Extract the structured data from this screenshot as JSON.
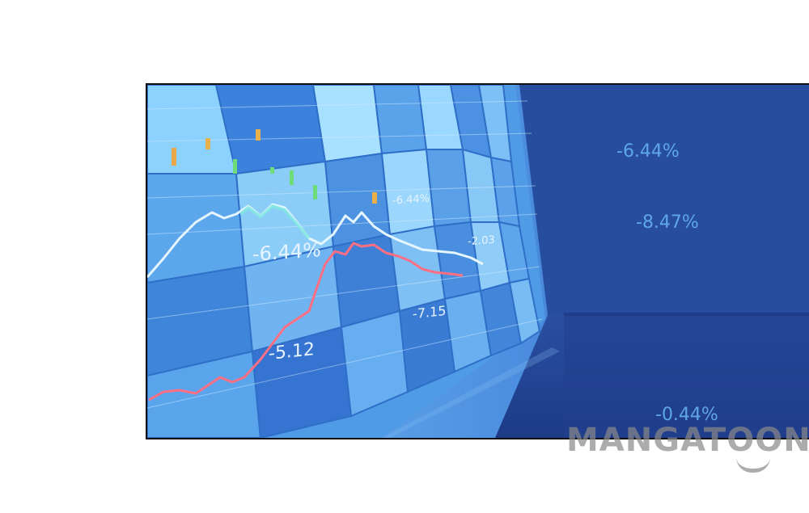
{
  "screen_values": {
    "left_a": "-6.44%",
    "left_b": "-2.03",
    "left_c": "-6.44%",
    "left_d": "-7.15",
    "left_e": "-5.12"
  },
  "right_values": [
    "-6.44%",
    "-8.47%",
    "-0.44%"
  ],
  "watermark": "MANGATOON",
  "colors": {
    "screen_light": "#8fd0ff",
    "screen_dark": "#2d63c4",
    "back_wall": "#264c9c",
    "line_white": "#e6f6ff",
    "line_red": "#ff6f84"
  }
}
